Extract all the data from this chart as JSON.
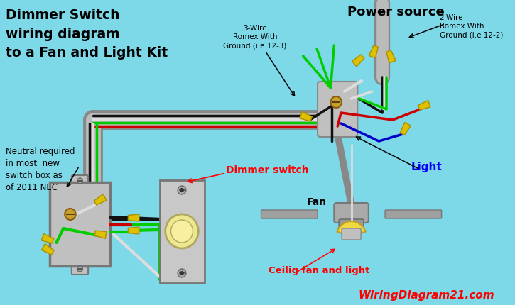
{
  "bg_color": "#7DD8E8",
  "title_text": "Dimmer Switch\nwiring diagram\nto a Fan and Light Kit",
  "power_source_text": "Power source",
  "wire_label_3wire": "3-Wire\nRomex With\nGround (i.e 12-3)",
  "wire_label_2wire": "2-Wire\nRomex With\nGround (i.e 12-2)",
  "neutral_text": "Neutral required\nin most  new\nswitch box as\nof 2011 NEC",
  "dimmer_switch_text": "Dimmer switch",
  "fan_text": "Fan",
  "light_text": "Light",
  "ceiling_fan_text": "Ceilig fan and light",
  "website_text": "WiringDiagram21.com",
  "black": "#111111",
  "white_wire": "#dddddd",
  "green": "#00cc00",
  "red": "#cc0000",
  "blue": "#0000cc",
  "gray_dark": "#888888",
  "gray_light": "#bbbbbb",
  "yellow_cap": "#DDC000",
  "yellow_cap_edge": "#AA9000",
  "gold": "#c8a030",
  "fan_body": "#aaaaaa",
  "dimmer_body": "#c8c8c8",
  "box_body": "#c0c0c0"
}
